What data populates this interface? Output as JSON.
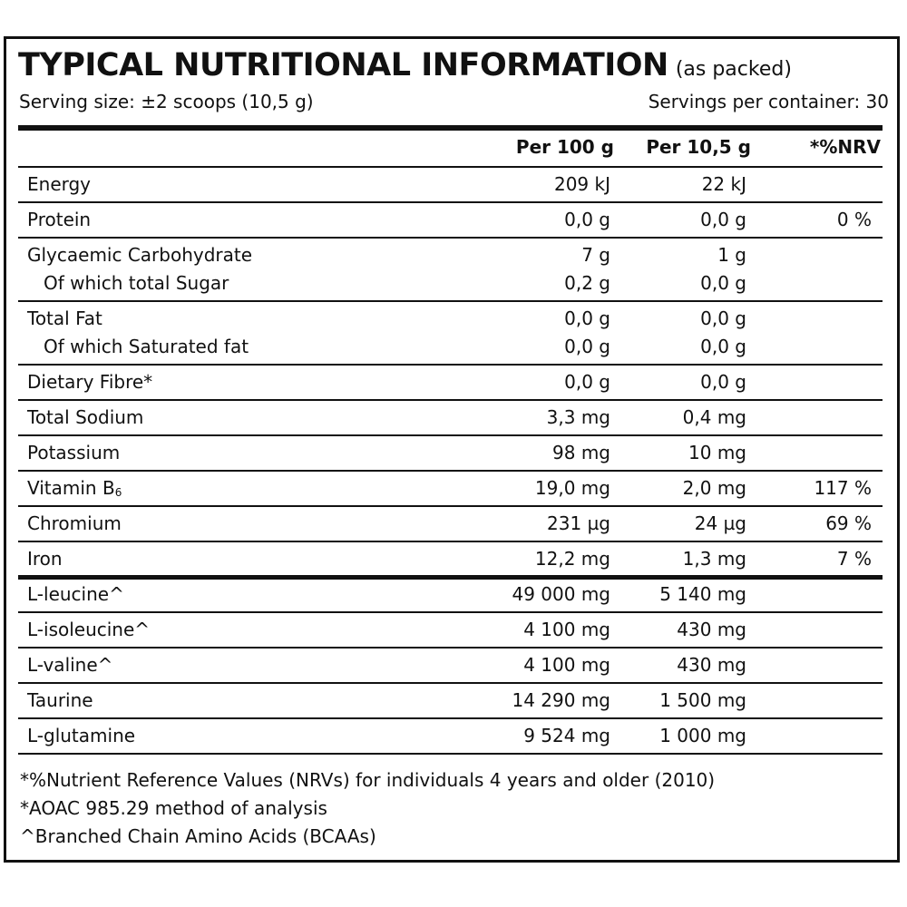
{
  "header": {
    "title": "TYPICAL NUTRITIONAL INFORMATION",
    "title_note": "(as packed)",
    "serving_size": "Serving size: ±2 scoops (10,5 g)",
    "servings_per_container": "Servings per container: 30"
  },
  "columns": {
    "per100": "Per 100 g",
    "perServing": "Per 10,5 g",
    "nrv": "*%NRV"
  },
  "rows": [
    {
      "lines": [
        {
          "name": "Energy",
          "per100": "209 kJ",
          "perServing": "22 kJ",
          "nrv": ""
        }
      ]
    },
    {
      "lines": [
        {
          "name": "Protein",
          "per100": "0,0 g",
          "perServing": "0,0 g",
          "nrv": "0 %"
        }
      ]
    },
    {
      "lines": [
        {
          "name": "Glycaemic Carbohydrate",
          "per100": "7 g",
          "perServing": "1 g",
          "nrv": ""
        },
        {
          "name": "Of which total Sugar",
          "per100": "0,2 g",
          "perServing": "0,0 g",
          "nrv": ""
        }
      ]
    },
    {
      "lines": [
        {
          "name": "Total Fat",
          "per100": "0,0 g",
          "perServing": "0,0 g",
          "nrv": ""
        },
        {
          "name": "Of which Saturated fat",
          "per100": "0,0 g",
          "perServing": "0,0 g",
          "nrv": ""
        }
      ]
    },
    {
      "lines": [
        {
          "name": "Dietary Fibre*",
          "per100": "0,0 g",
          "perServing": "0,0 g",
          "nrv": ""
        }
      ]
    },
    {
      "lines": [
        {
          "name": "Total Sodium",
          "per100": "3,3 mg",
          "perServing": "0,4 mg",
          "nrv": ""
        }
      ]
    },
    {
      "lines": [
        {
          "name": "Potassium",
          "per100": "98 mg",
          "perServing": "10 mg",
          "nrv": ""
        }
      ]
    },
    {
      "lines": [
        {
          "name": "Vitamin B",
          "sub": "6",
          "per100": "19,0 mg",
          "perServing": "2,0 mg",
          "nrv": "117 %"
        }
      ]
    },
    {
      "lines": [
        {
          "name": "Chromium",
          "per100": "231 µg",
          "perServing": "24 µg",
          "nrv": "69 %"
        }
      ]
    },
    {
      "lines": [
        {
          "name": "Iron",
          "per100": "12,2 mg",
          "perServing": "1,3 mg",
          "nrv": "7 %"
        }
      ]
    },
    {
      "lines": [
        {
          "name": "L-leucine^",
          "per100": "49 000 mg",
          "perServing": "5 140 mg",
          "nrv": ""
        }
      ]
    },
    {
      "lines": [
        {
          "name": "L-isoleucine^",
          "per100": "4 100 mg",
          "perServing": "430 mg",
          "nrv": ""
        }
      ]
    },
    {
      "lines": [
        {
          "name": "L-valine^",
          "per100": "4 100 mg",
          "perServing": "430 mg",
          "nrv": ""
        }
      ]
    },
    {
      "lines": [
        {
          "name": "Taurine",
          "per100": "14 290 mg",
          "perServing": "1 500 mg",
          "nrv": ""
        }
      ]
    },
    {
      "lines": [
        {
          "name": "L-glutamine",
          "per100": "9 524 mg",
          "perServing": "1 000 mg",
          "nrv": ""
        }
      ]
    }
  ],
  "footnotes": [
    "*%Nutrient Reference Values (NRVs) for individuals 4 years and older (2010)",
    "*AOAC 985.29 method of analysis",
    "^Branched Chain Amino Acids (BCAAs)"
  ]
}
